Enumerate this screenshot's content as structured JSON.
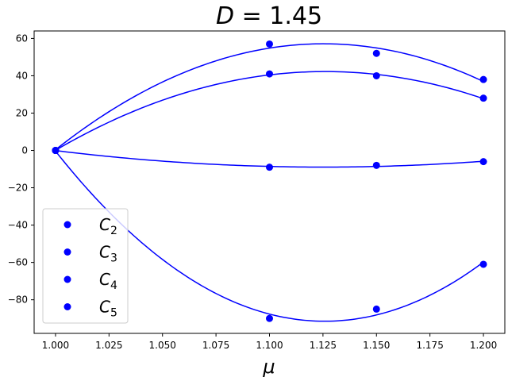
{
  "chart_data": {
    "type": "scatter",
    "title": "D = 1.45",
    "title_parts": {
      "var": "D",
      "rest": " = 1.45"
    },
    "xlabel": "μ",
    "ylabel": "",
    "xlim": [
      0.99,
      1.21
    ],
    "ylim": [
      -98,
      64
    ],
    "xticks": [
      1.0,
      1.025,
      1.05,
      1.075,
      1.1,
      1.125,
      1.15,
      1.175,
      1.2
    ],
    "xtick_labels": [
      "1.000",
      "1.025",
      "1.050",
      "1.075",
      "1.100",
      "1.125",
      "1.150",
      "1.175",
      "1.200"
    ],
    "yticks": [
      -80,
      -60,
      -40,
      -20,
      0,
      20,
      40,
      60
    ],
    "ytick_labels": [
      "−80",
      "−60",
      "−40",
      "−20",
      "0",
      "20",
      "40",
      "60"
    ],
    "grid": false,
    "legend_position": "lower-left",
    "color": "#0000ff",
    "series": [
      {
        "name": "C2",
        "label_main": "C",
        "label_sub": "2",
        "x": [
          1.0,
          1.1,
          1.15,
          1.2
        ],
        "y": [
          0,
          57,
          52,
          38
        ]
      },
      {
        "name": "C3",
        "label_main": "C",
        "label_sub": "3",
        "x": [
          1.0,
          1.1,
          1.15,
          1.2
        ],
        "y": [
          0,
          41,
          40,
          28
        ]
      },
      {
        "name": "C4",
        "label_main": "C",
        "label_sub": "4",
        "x": [
          1.0,
          1.1,
          1.15,
          1.2
        ],
        "y": [
          0,
          -9,
          -8,
          -6
        ]
      },
      {
        "name": "C5",
        "label_main": "C",
        "label_sub": "5",
        "x": [
          1.0,
          1.1,
          1.15,
          1.2
        ],
        "y": [
          0,
          -90,
          -85,
          -61
        ]
      }
    ]
  }
}
